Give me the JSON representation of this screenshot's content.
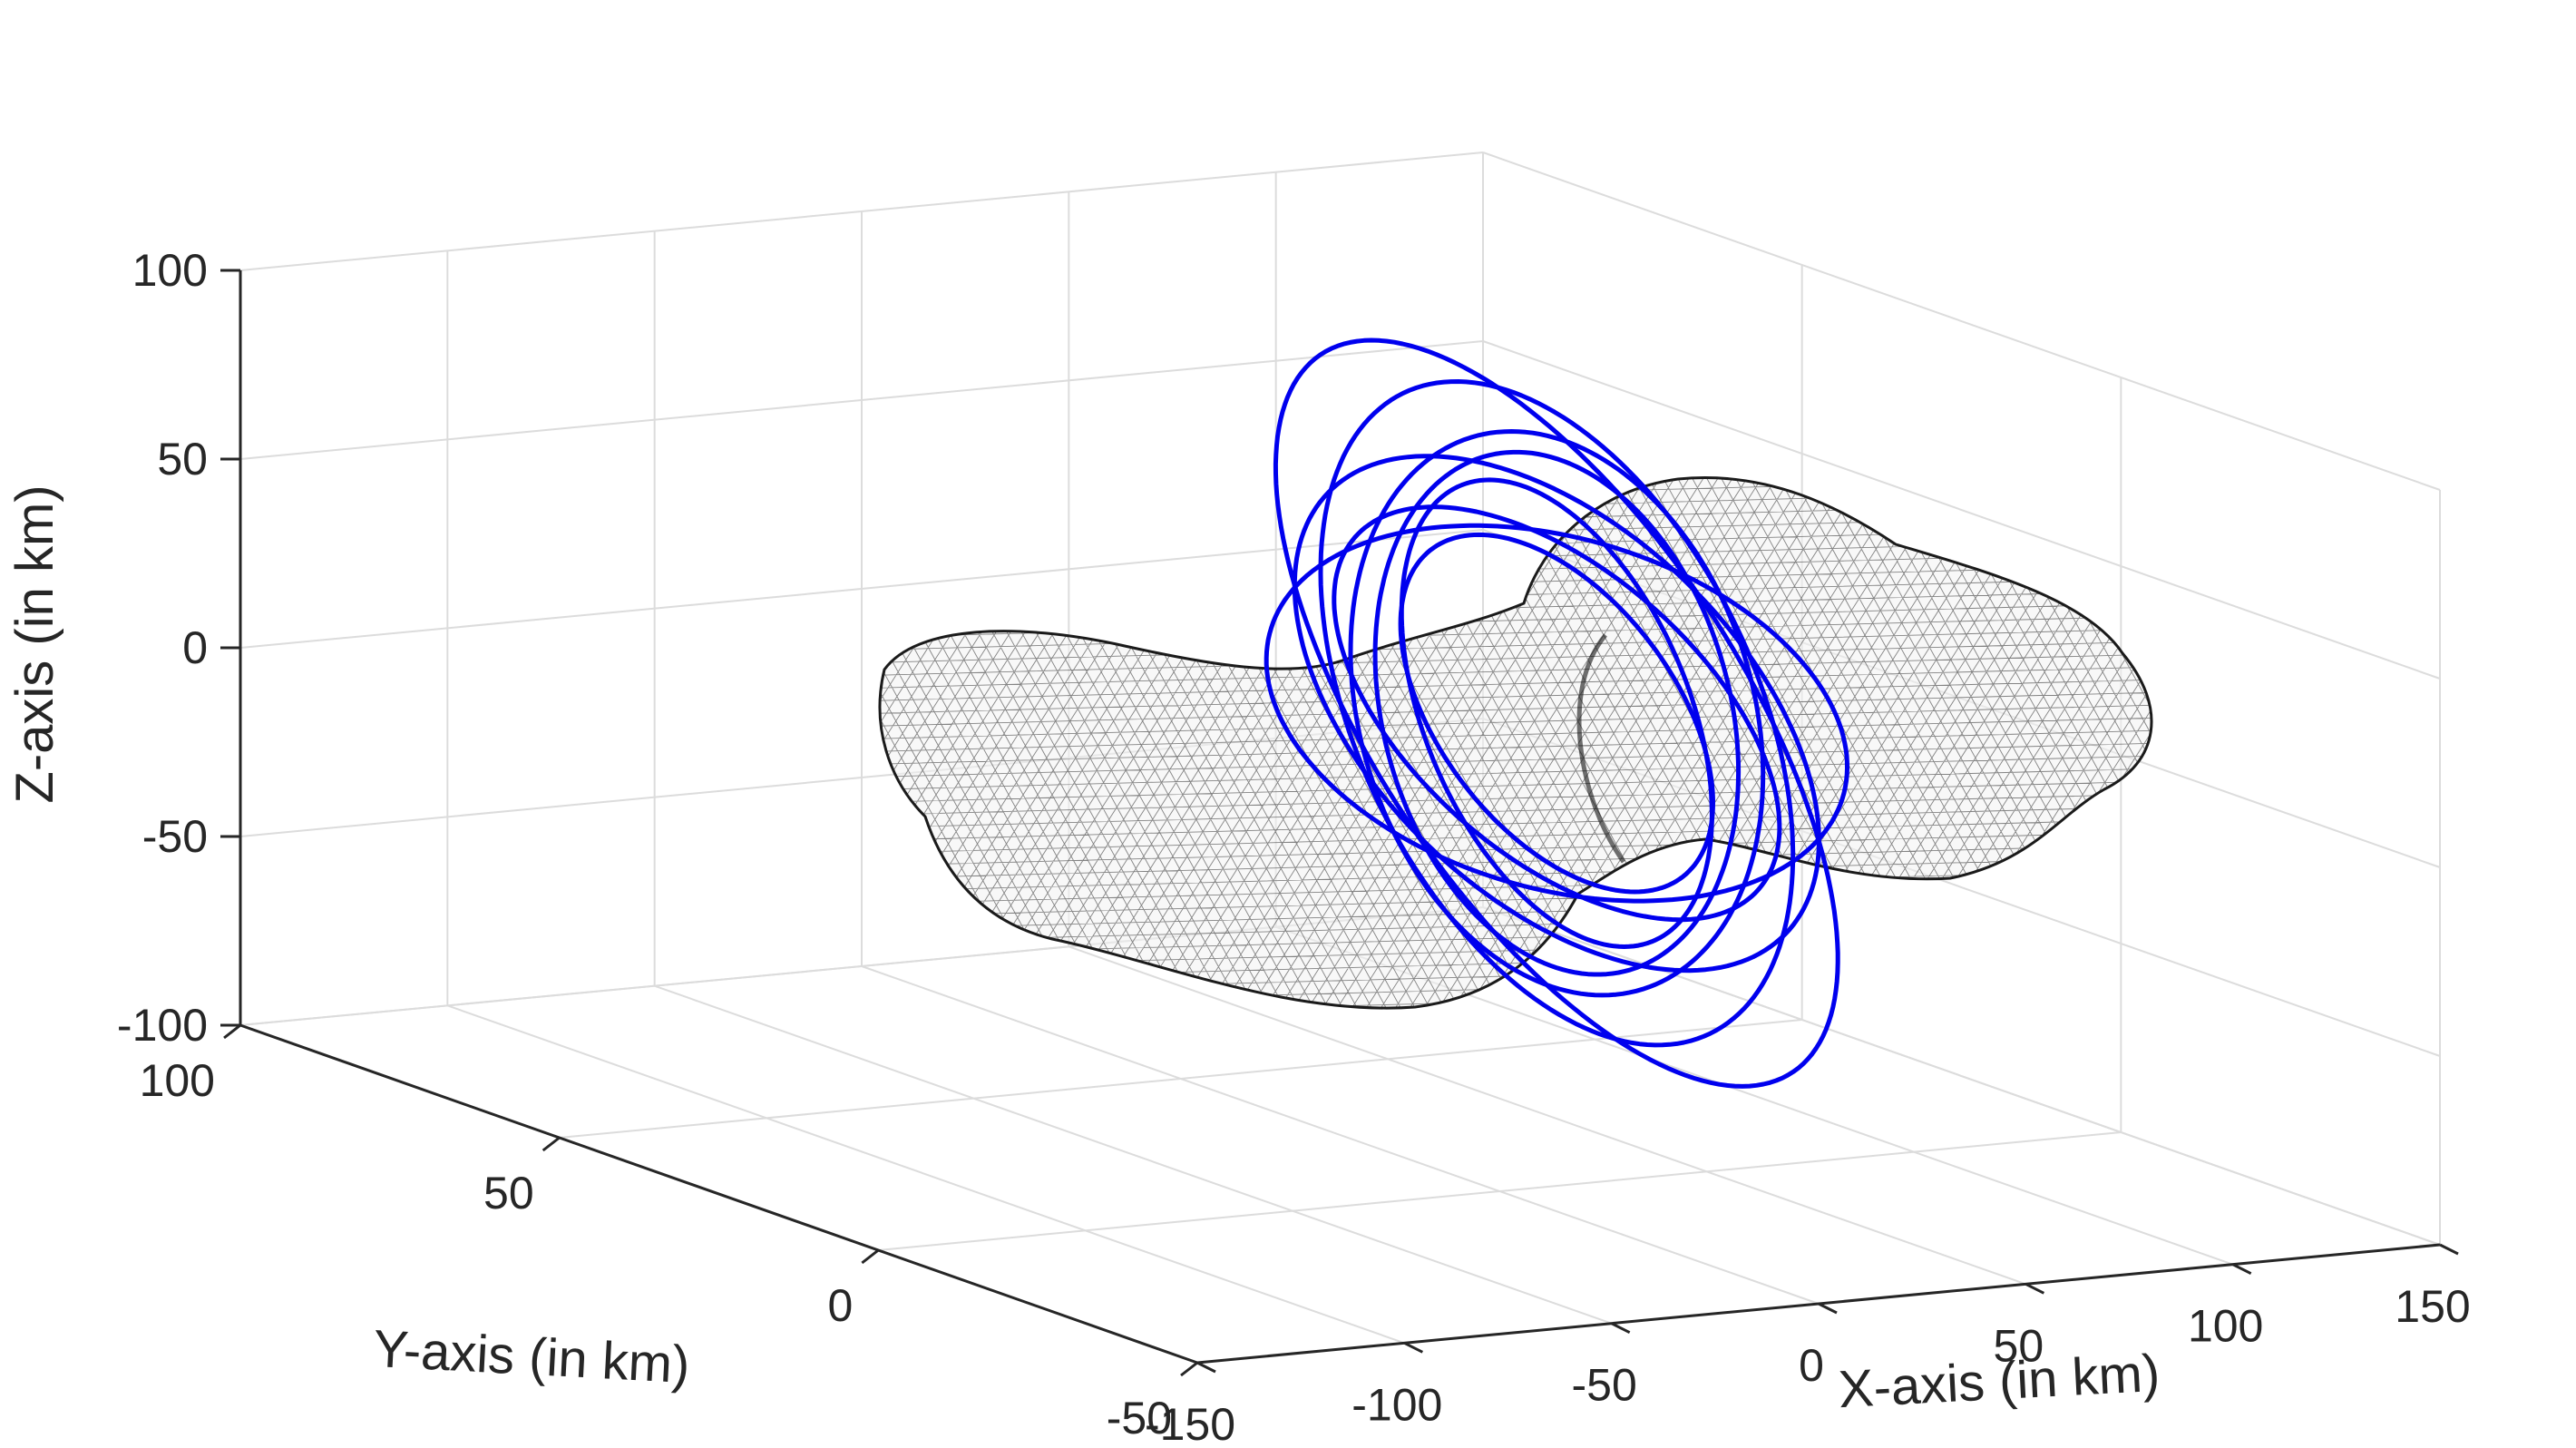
{
  "chart_data": {
    "type": "line3d",
    "title": "",
    "xlabel": "X-axis (in km)",
    "ylabel": "Y-axis (in km)",
    "zlabel": "Z-axis (in km)",
    "xlim": [
      -150,
      150
    ],
    "ylim": [
      -50,
      100
    ],
    "zlim": [
      -100,
      100
    ],
    "x_ticks": [
      "-150",
      "-100",
      "-50",
      "0",
      "50",
      "100",
      "150"
    ],
    "y_ticks": [
      "-50",
      "0",
      "50",
      "100"
    ],
    "z_ticks": [
      "-100",
      "-50",
      "0",
      "50",
      "100"
    ],
    "grid": true,
    "colors": {
      "orbit": "#0000ee",
      "mesh": "#222222",
      "grid": "#dcdcdc",
      "axis": "#262626"
    },
    "series": [
      {
        "type": "trajectory",
        "loops": 9,
        "radius_x_km": 70,
        "radius_y_km": 32,
        "z_range_km": [
          -75,
          80
        ],
        "center_km": [
          60,
          30,
          5
        ]
      },
      {
        "type": "mesh-surface",
        "shape": "bilobed asteroid",
        "extent_x_km": [
          -110,
          110
        ],
        "extent_y_km": [
          -30,
          60
        ],
        "extent_z_km": [
          -45,
          45
        ]
      }
    ]
  }
}
